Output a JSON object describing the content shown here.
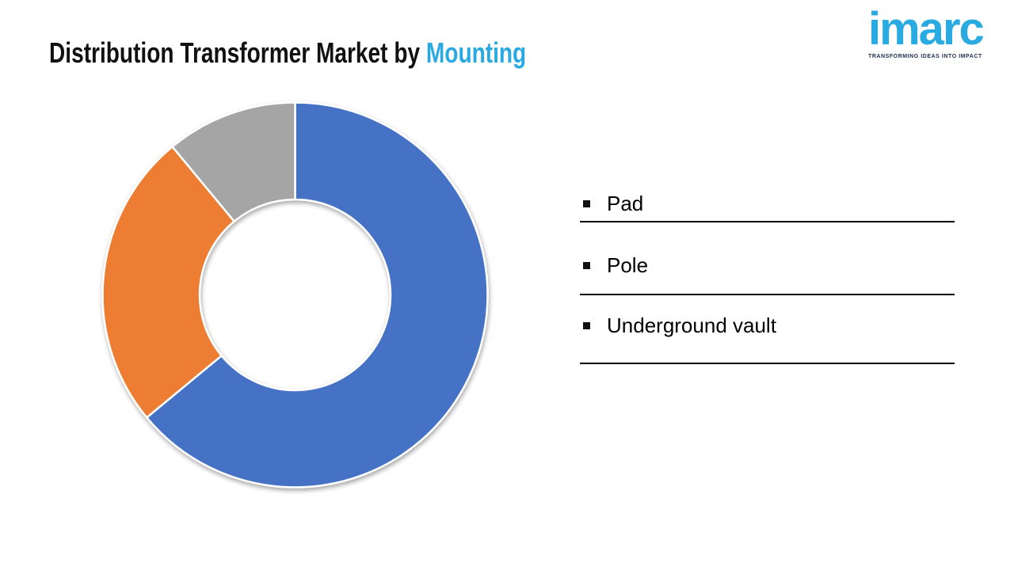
{
  "header": {
    "title_main": "Distribution Transformer Market by ",
    "title_accent": "Mounting",
    "accent_color": "#29A9E1",
    "title_color": "#111111"
  },
  "logo": {
    "wordmark": "imarc",
    "tagline": "TRANSFORMING IDEAS INTO IMPACT",
    "wordmark_color": "#29ABE2",
    "tagline_color": "#1D2E4E"
  },
  "chart_data": {
    "type": "pie",
    "subtype": "donut",
    "title": "Distribution Transformer Market by Mounting",
    "categories": [
      "Pad",
      "Pole",
      "Underground vault"
    ],
    "values": [
      64,
      25,
      11
    ],
    "values_note": "percent share estimated from arc angles; no numeric labels shown in image",
    "colors": [
      "#4472C4",
      "#ED7D31",
      "#A5A5A5"
    ],
    "start_angle_deg": 0,
    "direction": "clockwise",
    "inner_radius_ratio": 0.5,
    "slice_border_color": "#FFFFFF",
    "legend_position": "right",
    "data_labels": false
  },
  "legend": {
    "items": [
      {
        "label": "Pad"
      },
      {
        "label": "Pole"
      },
      {
        "label": "Underground vault"
      }
    ],
    "line_color": "#000000",
    "bullet_color": "#111111"
  }
}
